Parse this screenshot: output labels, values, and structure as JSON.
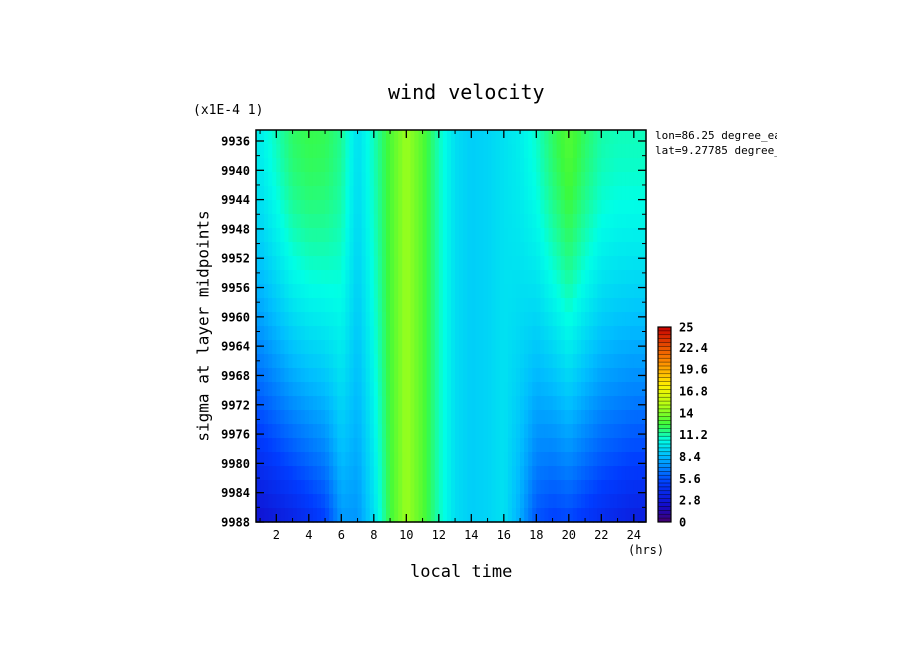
{
  "chart_data": {
    "type": "heatmap",
    "title": "wind velocity",
    "scale_note": "(x1E-4 1)",
    "xlabel": "local time",
    "xunits": "(hrs)",
    "ylabel": "sigma at layer midpoints",
    "annotations": [
      "lon=86.25 degree_ea",
      "lat=9.27785 degree_"
    ],
    "xlim": [
      0.75,
      24.75
    ],
    "ylim": [
      9988,
      9934.5
    ],
    "xticks": [
      "2",
      "4",
      "6",
      "8",
      "10",
      "12",
      "14",
      "16",
      "18",
      "20",
      "22",
      "24"
    ],
    "xtick_values": [
      2,
      4,
      6,
      8,
      10,
      12,
      14,
      16,
      18,
      20,
      22,
      24
    ],
    "yticks": [
      "9936",
      "9940",
      "9944",
      "9948",
      "9952",
      "9956",
      "9960",
      "9964",
      "9968",
      "9972",
      "9976",
      "9980",
      "9984",
      "9988"
    ],
    "ytick_values": [
      9936,
      9940,
      9944,
      9948,
      9952,
      9956,
      9960,
      9964,
      9968,
      9972,
      9976,
      9980,
      9984,
      9988
    ],
    "hours": [
      1,
      2,
      3,
      4,
      5,
      6,
      7,
      8,
      9,
      10,
      11,
      12,
      13,
      14,
      15,
      16,
      17,
      18,
      19,
      20,
      21,
      22,
      23,
      24
    ],
    "top_profile": [
      10.0,
      11.0,
      12.0,
      12.3,
      12.2,
      11.5,
      9.5,
      11.0,
      12.8,
      14.5,
      13.0,
      11.0,
      9.5,
      9.0,
      9.2,
      9.6,
      10.0,
      10.8,
      12.0,
      13.0,
      12.0,
      11.2,
      11.0,
      11.0
    ],
    "bottom_profile": [
      2.5,
      3.0,
      3.5,
      4.2,
      5.0,
      7.5,
      7.4,
      9.5,
      12.5,
      14.5,
      13.0,
      11.0,
      9.5,
      9.0,
      9.2,
      9.6,
      8.0,
      5.6,
      5.0,
      5.2,
      4.6,
      4.0,
      3.6,
      3.2
    ],
    "colorbar": {
      "min": 0,
      "max": 25,
      "labels": [
        "25",
        "22.4",
        "19.6",
        "16.8",
        "14",
        "11.2",
        "8.4",
        "5.6",
        "2.8",
        "0"
      ],
      "label_values": [
        25,
        22.4,
        19.6,
        16.8,
        14,
        11.2,
        8.4,
        5.6,
        2.8,
        0
      ]
    }
  }
}
